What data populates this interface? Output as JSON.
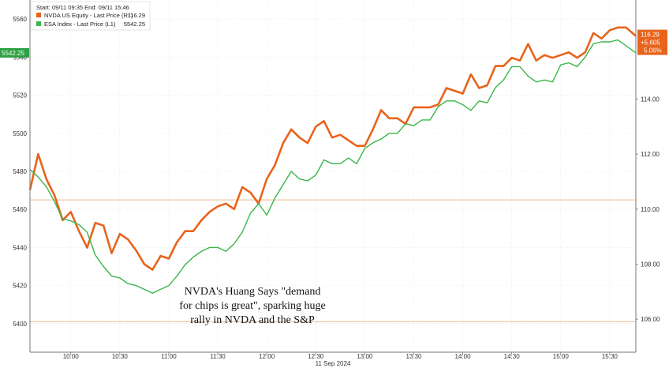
{
  "chart_data": {
    "type": "line",
    "header": "Start: 09/11 09:35 End: 09/11 15:46",
    "xlabel": "11 Sep 2024",
    "x_ticks": [
      "10:00",
      "10:30",
      "11:00",
      "11:30",
      "12:00",
      "12:30",
      "13:00",
      "13:30",
      "14:00",
      "14:30",
      "15:00",
      "15:30"
    ],
    "y_left_ticks": [
      5400,
      5420,
      5440,
      5460,
      5480,
      5500,
      5520,
      5540,
      5560
    ],
    "y_right_ticks": [
      "106.00",
      "108.00",
      "110.00",
      "112.00",
      "114.00"
    ],
    "y_left_range": [
      5385,
      5570
    ],
    "y_right_range": [
      104.8,
      117.6
    ],
    "x_range": [
      "09:35",
      "15:46"
    ],
    "reference_lines_left": [
      5465,
      5401
    ],
    "series": [
      {
        "name": "NVDA US Equity - Last Price (R1)",
        "legend_value": "116.29",
        "axis": "right",
        "color": "#e8631c",
        "last_label": "116.29",
        "change_labels": [
          "+5.605",
          "5.06%"
        ],
        "x": [
          "09:35",
          "09:40",
          "09:45",
          "09:50",
          "09:55",
          "10:00",
          "10:05",
          "10:10",
          "10:15",
          "10:20",
          "10:25",
          "10:30",
          "10:35",
          "10:40",
          "10:45",
          "10:50",
          "10:55",
          "11:00",
          "11:05",
          "11:10",
          "11:15",
          "11:20",
          "11:25",
          "11:30",
          "11:35",
          "11:40",
          "11:45",
          "11:50",
          "11:55",
          "12:00",
          "12:05",
          "12:10",
          "12:15",
          "12:20",
          "12:25",
          "12:30",
          "12:35",
          "12:40",
          "12:45",
          "12:50",
          "12:55",
          "13:00",
          "13:05",
          "13:10",
          "13:15",
          "13:20",
          "13:25",
          "13:30",
          "13:35",
          "13:40",
          "13:45",
          "13:50",
          "13:55",
          "14:00",
          "14:05",
          "14:10",
          "14:15",
          "14:20",
          "14:25",
          "14:30",
          "14:35",
          "14:40",
          "14:45",
          "14:50",
          "14:55",
          "15:00",
          "15:05",
          "15:10",
          "15:15",
          "15:20",
          "15:25",
          "15:30",
          "15:35",
          "15:40",
          "15:46"
        ],
        "y": [
          110.7,
          112.0,
          111.1,
          110.5,
          109.6,
          109.9,
          109.2,
          108.6,
          109.5,
          109.4,
          108.4,
          109.1,
          108.9,
          108.5,
          108.0,
          107.8,
          108.3,
          108.2,
          108.8,
          109.2,
          109.2,
          109.6,
          109.9,
          110.1,
          110.2,
          110.0,
          110.8,
          110.6,
          110.2,
          111.1,
          111.6,
          112.4,
          112.9,
          112.6,
          112.4,
          113.0,
          113.2,
          112.6,
          112.7,
          112.5,
          112.3,
          112.3,
          112.9,
          113.6,
          113.3,
          113.3,
          113.1,
          113.7,
          113.7,
          113.7,
          113.8,
          114.4,
          114.3,
          114.2,
          114.9,
          114.4,
          114.5,
          115.2,
          115.2,
          115.5,
          115.4,
          116.0,
          115.4,
          115.6,
          115.5,
          115.6,
          115.7,
          115.5,
          115.7,
          116.4,
          116.2,
          116.5,
          116.6,
          116.6,
          116.29
        ]
      },
      {
        "name": "ESA Index - Last Price (L1)",
        "legend_value": "5542.25",
        "axis": "left",
        "color": "#39b54a",
        "last_label": "5542.25",
        "x": [
          "09:35",
          "09:40",
          "09:45",
          "09:50",
          "09:55",
          "10:00",
          "10:05",
          "10:10",
          "10:15",
          "10:20",
          "10:25",
          "10:30",
          "10:35",
          "10:40",
          "10:45",
          "10:50",
          "10:55",
          "11:00",
          "11:05",
          "11:10",
          "11:15",
          "11:20",
          "11:25",
          "11:30",
          "11:35",
          "11:40",
          "11:45",
          "11:50",
          "11:55",
          "12:00",
          "12:05",
          "12:10",
          "12:15",
          "12:20",
          "12:25",
          "12:30",
          "12:35",
          "12:40",
          "12:45",
          "12:50",
          "12:55",
          "13:00",
          "13:05",
          "13:10",
          "13:15",
          "13:20",
          "13:25",
          "13:30",
          "13:35",
          "13:40",
          "13:45",
          "13:50",
          "13:55",
          "14:00",
          "14:05",
          "14:10",
          "14:15",
          "14:20",
          "14:25",
          "14:30",
          "14:35",
          "14:40",
          "14:45",
          "14:50",
          "14:55",
          "15:00",
          "15:05",
          "15:10",
          "15:15",
          "15:20",
          "15:25",
          "15:30",
          "15:35",
          "15:40",
          "15:46"
        ],
        "y": [
          5481,
          5477,
          5472,
          5464,
          5455,
          5454,
          5452,
          5448,
          5436,
          5430,
          5425,
          5424,
          5421,
          5420,
          5418,
          5416,
          5418,
          5420,
          5425,
          5431,
          5435,
          5438,
          5440,
          5440,
          5438,
          5442,
          5448,
          5458,
          5463,
          5457,
          5466,
          5473,
          5480,
          5476,
          5475,
          5478,
          5486,
          5484,
          5484,
          5487,
          5484,
          5492,
          5495,
          5497,
          5500,
          5500,
          5505,
          5504,
          5507,
          5507,
          5514,
          5517,
          5517,
          5515,
          5512,
          5517,
          5516,
          5524,
          5528,
          5535,
          5535,
          5530,
          5527,
          5528,
          5527,
          5536,
          5537,
          5535,
          5540,
          5547,
          5548,
          5548,
          5549,
          5546,
          5542.25
        ]
      }
    ],
    "annotation_lines": [
      "NVDA's Huang Says \"demand",
      "for chips is great\", sparking huge",
      "rally in NVDA and the S&P"
    ]
  }
}
